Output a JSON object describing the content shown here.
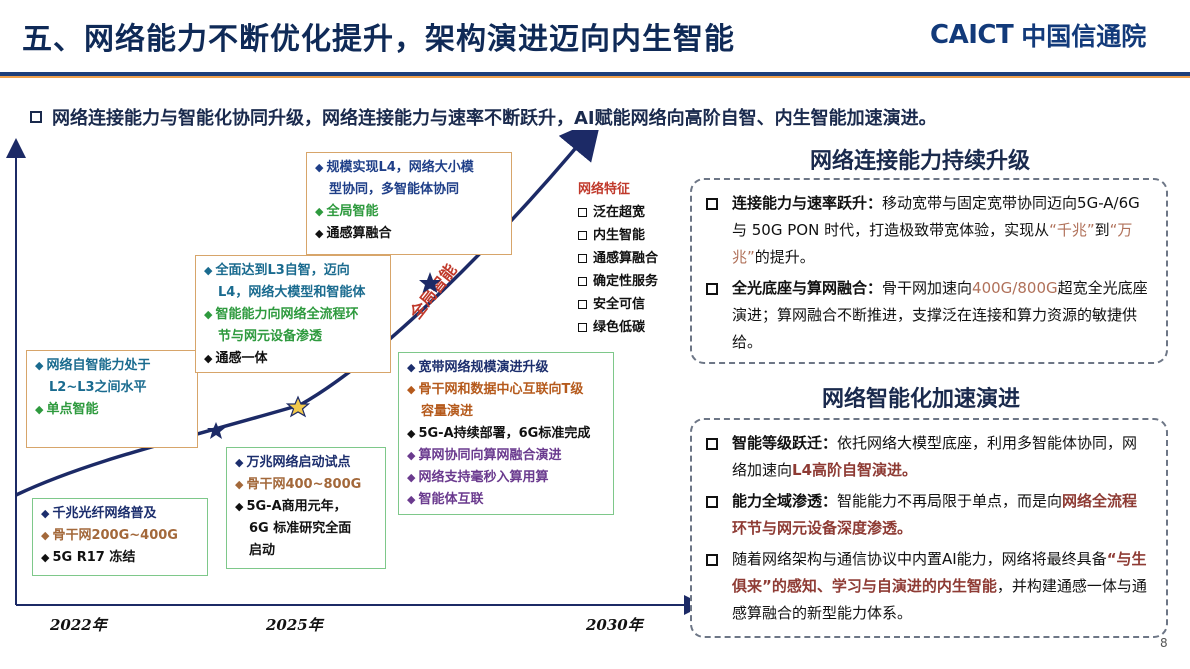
{
  "title": "五、网络能力不断优化提升，架构演进迈向内生智能",
  "logo": {
    "en": "CAICT",
    "cn": "中国信通院"
  },
  "headline": "网络连接能力与智能化协同升级，网络连接能力与速率不断跃升，AI赋能网络向高阶自智、内生智能加速演进。",
  "timeline": {
    "years": [
      "2022年",
      "2025年",
      "2030年"
    ],
    "curve_label": "全局智能",
    "boxes": {
      "box1": {
        "lines": [
          "网络自智能力处于",
          "L2~L3之间水平",
          "单点智能"
        ]
      },
      "box2": {
        "lines": [
          "全面达到L3自智，迈向",
          "L4，网络大模型和智能体",
          "智能能力向网络全流程环",
          "节与网元设备渗透",
          "通感一体"
        ]
      },
      "box3": {
        "lines": [
          "规模实现L4，网络大小模",
          "型协同，多智能体协同",
          "全局智能",
          "通感算融合"
        ]
      },
      "box4": {
        "lines": [
          "千兆光纤网络普及",
          "骨干网200G~400G",
          "5G R17 冻结"
        ]
      },
      "box5": {
        "lines": [
          "万兆网络启动试点",
          "骨干网400~800G",
          "5G-A商用元年，",
          "6G 标准研究全面",
          "启动"
        ]
      },
      "box6": {
        "lines": [
          "宽带网络规模演进升级",
          "骨干网和数据中心互联向T级",
          "容量演进",
          "5G-A持续部署，6G标准完成",
          "算网协同向算网融合演进",
          "网络支持毫秒入算用算",
          "智能体互联"
        ]
      }
    },
    "features": {
      "title": "网络特征",
      "items": [
        "泛在超宽",
        "内生智能",
        "通感算融合",
        "确定性服务",
        "安全可信",
        "绿色低碳"
      ]
    }
  },
  "section1": {
    "title": "网络连接能力持续升级",
    "bullets": [
      {
        "lead": "连接能力与速率跃升",
        "sep": "：",
        "p1": "移动宽带与固定宽带协同迈向5G-A/6G 与 50G PON 时代，打造极致带宽体验，实现从",
        "h1": "“千兆”",
        "p2": "到",
        "h2": "“万兆”",
        "p3": "的提升。"
      },
      {
        "lead": "全光底座与算网融合",
        "sep": "：",
        "p1": "骨干网加速向",
        "h1": "400G/800G",
        "p2": "超宽全光底座演进；算网融合不断推进，支撑泛在连接和算力资源的敏捷供给。"
      }
    ]
  },
  "section2": {
    "title": "网络智能化加速演进",
    "bullets": [
      {
        "lead": "智能等级跃迁",
        "sep": "：",
        "p1": "依托网络大模型底座，利用多智能体协同，网络加速向",
        "h1": "L4高阶自智演进。"
      },
      {
        "lead": "能力全域渗透",
        "sep": "：",
        "p1": "智能能力不再局限于单点，而是向",
        "h1": "网络全流程环节与网元设备深度渗透。"
      },
      {
        "p1": "随着网络架构与通信协议中内置AI能力，网络将最终具备",
        "h1": "“与生俱来”的感知、学习与自演进的内生智能",
        "p2": "，并构建通感一体与通感算融合的新型能力体系。"
      }
    ]
  },
  "page_number": "8",
  "colors": {
    "title": "#0f2a57",
    "accent_orange": "#f0a04b",
    "curve": "#1c2a66",
    "curve_label": "#c0392b",
    "highlight": "#b0715a"
  }
}
